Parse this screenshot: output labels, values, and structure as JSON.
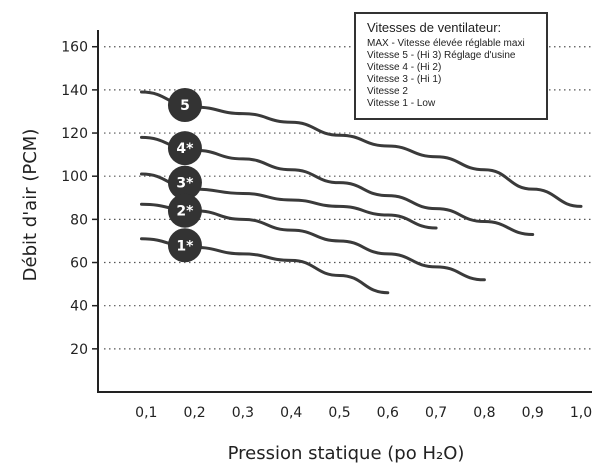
{
  "chart_data": {
    "type": "line",
    "xlabel": "Pression statique (po H₂O)",
    "ylabel": "Débit d'air (PCM)",
    "xlim": [
      0.0,
      1.0
    ],
    "ylim": [
      0,
      160
    ],
    "xticks": [
      0.1,
      0.2,
      0.3,
      0.4,
      0.5,
      0.6,
      0.7,
      0.8,
      0.9,
      1.0
    ],
    "xtick_labels": [
      "0,1",
      "0,2",
      "0,3",
      "0,4",
      "0,5",
      "0,6",
      "0,7",
      "0,8",
      "0,9",
      "1,0"
    ],
    "yticks": [
      20,
      40,
      60,
      80,
      100,
      120,
      140,
      160
    ],
    "grid": "horizontal dotted",
    "legend_position": "top-right",
    "legend": {
      "title": "Vitesses de ventilateur:",
      "items": [
        "MAX - Vitesse élevée réglable maxi",
        "Vitesse 5 - (Hi 3) Réglage d'usine",
        "Vitesse 4 - (Hi 2)",
        "Vitesse 3 - (Hi 1)",
        "Vitesse 2",
        "Vitesse 1 - Low"
      ]
    },
    "series": [
      {
        "name": "5",
        "label_at": [
          0.18,
          133
        ],
        "x": [
          0.09,
          0.2,
          0.3,
          0.4,
          0.5,
          0.6,
          0.7,
          0.8,
          0.9,
          1.0
        ],
        "y": [
          139,
          132,
          129,
          125,
          119,
          114,
          109,
          103,
          94,
          86
        ]
      },
      {
        "name": "4*",
        "label_at": [
          0.18,
          113
        ],
        "x": [
          0.09,
          0.2,
          0.3,
          0.4,
          0.5,
          0.6,
          0.7,
          0.8,
          0.9
        ],
        "y": [
          118,
          112,
          108,
          103,
          97,
          91,
          85,
          79,
          73
        ]
      },
      {
        "name": "3*",
        "label_at": [
          0.18,
          97
        ],
        "x": [
          0.09,
          0.2,
          0.3,
          0.4,
          0.5,
          0.6,
          0.7
        ],
        "y": [
          101,
          94,
          92,
          89,
          86,
          82,
          76
        ]
      },
      {
        "name": "2*",
        "label_at": [
          0.18,
          84
        ],
        "x": [
          0.09,
          0.2,
          0.3,
          0.4,
          0.5,
          0.6,
          0.7,
          0.8
        ],
        "y": [
          87,
          84,
          80,
          75,
          70,
          64,
          58,
          52
        ]
      },
      {
        "name": "1*",
        "label_at": [
          0.18,
          68
        ],
        "x": [
          0.09,
          0.2,
          0.3,
          0.4,
          0.5,
          0.6
        ],
        "y": [
          71,
          67,
          64,
          61,
          54,
          46
        ]
      }
    ]
  }
}
